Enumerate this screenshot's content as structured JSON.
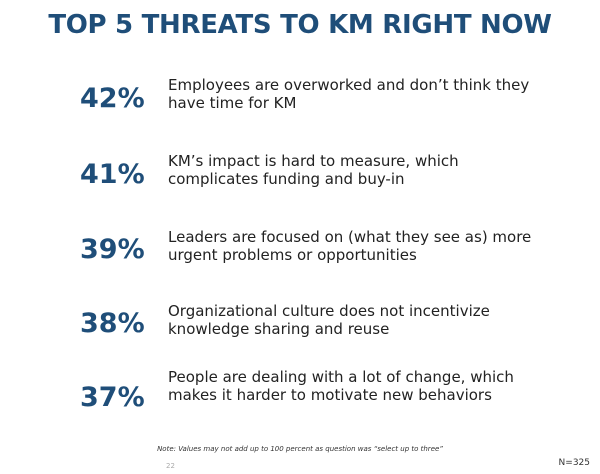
{
  "chart_data": {
    "type": "table",
    "title": "TOP 5 THREATS TO KM RIGHT NOW",
    "rows": [
      {
        "value": "42%",
        "label_line1": "Employees are overworked and don’t think they",
        "label_line2": "have time for KM"
      },
      {
        "value": "41%",
        "label_line1": "KM’s impact is hard to measure, which",
        "label_line2": "complicates funding and buy-in"
      },
      {
        "value": "39%",
        "label_line1": "Leaders are focused on (what they see as) more",
        "label_line2": "urgent problems or opportunities"
      },
      {
        "value": "38%",
        "label_line1": "Organizational culture does not incentivize",
        "label_line2": "knowledge sharing and reuse"
      },
      {
        "value": "37%",
        "label_line1": "People are dealing with a lot of change, which",
        "label_line2": "makes it harder to motivate new behaviors"
      }
    ],
    "note": "Note: Values may not add up to 100 percent as question was “select up to three”",
    "page_number": "22",
    "sample_size": "N=325"
  },
  "colors": {
    "accent": "#1f4e79",
    "text": "#222222"
  }
}
